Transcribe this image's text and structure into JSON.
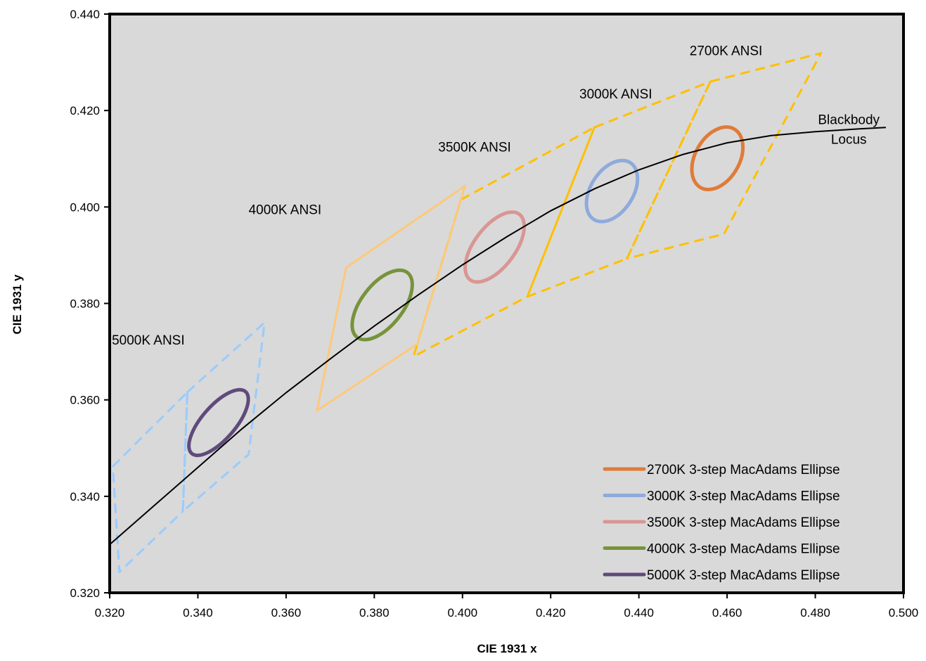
{
  "chart_data": {
    "type": "line",
    "title": "",
    "xlabel": "CIE 1931 x",
    "ylabel": "CIE 1931 y",
    "xlim": [
      0.32,
      0.5
    ],
    "ylim": [
      0.32,
      0.44
    ],
    "xticks": [
      "0.320",
      "0.340",
      "0.360",
      "0.380",
      "0.400",
      "0.420",
      "0.440",
      "0.460",
      "0.480",
      "0.500"
    ],
    "yticks": [
      "0.320",
      "0.340",
      "0.360",
      "0.380",
      "0.400",
      "0.420",
      "0.440"
    ],
    "grid": false,
    "legend_position": "bottom-right",
    "plot_background": "#d9d9d9",
    "blackbody_locus": {
      "label": [
        "Blackbody",
        "Locus"
      ],
      "color": "#000000",
      "x": [
        0.32,
        0.33,
        0.34,
        0.35,
        0.36,
        0.37,
        0.38,
        0.39,
        0.4,
        0.41,
        0.42,
        0.43,
        0.44,
        0.45,
        0.46,
        0.47,
        0.48,
        0.49,
        0.496
      ],
      "y": [
        0.33,
        0.338,
        0.346,
        0.354,
        0.3615,
        0.3685,
        0.3753,
        0.3818,
        0.388,
        0.3938,
        0.3992,
        0.4038,
        0.4077,
        0.4109,
        0.4133,
        0.4148,
        0.4156,
        0.4162,
        0.4165
      ]
    },
    "ansi_quadrangles": [
      {
        "name": "2700K ANSI",
        "label_at": [
          0.4515,
          0.4315
        ],
        "color": "#ffc000",
        "style": "dashed",
        "points": [
          [
            0.4562,
            0.426
          ],
          [
            0.4813,
            0.4319
          ],
          [
            0.4593,
            0.3944
          ],
          [
            0.4373,
            0.3893
          ]
        ]
      },
      {
        "name": "3000K ANSI",
        "label_at": [
          0.4265,
          0.4225
        ],
        "color": "#ffc000",
        "style": "dashed",
        "points": [
          [
            0.4299,
            0.4165
          ],
          [
            0.4562,
            0.426
          ],
          [
            0.4373,
            0.3893
          ],
          [
            0.4147,
            0.3814
          ]
        ]
      },
      {
        "name": "3500K ANSI",
        "label_at": [
          0.3945,
          0.4115
        ],
        "color": "#ffc000",
        "style": "dashed",
        "points": [
          [
            0.3996,
            0.4015
          ],
          [
            0.4299,
            0.4165
          ],
          [
            0.4147,
            0.3814
          ],
          [
            0.3889,
            0.369
          ]
        ]
      },
      {
        "name": "4000K ANSI",
        "label_at": [
          0.3515,
          0.3985
        ],
        "color": "#fcc97a",
        "style": "solid",
        "points": [
          [
            0.3736,
            0.3874
          ],
          [
            0.4006,
            0.4044
          ],
          [
            0.3898,
            0.3716
          ],
          [
            0.367,
            0.3578
          ]
        ]
      },
      {
        "name": "5000K ANSI",
        "label_at": [
          0.3205,
          0.3715
        ],
        "color": "#99ccff",
        "style": "dashed",
        "points": [
          [
            0.3376,
            0.3616
          ],
          [
            0.3551,
            0.376
          ],
          [
            0.3515,
            0.3487
          ],
          [
            0.3366,
            0.3369
          ]
        ]
      },
      {
        "name": "",
        "label_at": null,
        "color": "#99ccff",
        "style": "dashed",
        "points": [
          [
            0.3207,
            0.3462
          ],
          [
            0.3376,
            0.3616
          ],
          [
            0.3366,
            0.3369
          ],
          [
            0.3222,
            0.3243
          ]
        ]
      }
    ],
    "ellipses": [
      {
        "name": "2700K 3-step MacAdams Ellipse",
        "color": "#e07b39",
        "cx": 0.4578,
        "cy": 0.4101,
        "rx": 0.005,
        "ry": 0.007,
        "tilt_deg": 30
      },
      {
        "name": "3000K 3-step MacAdams Ellipse",
        "color": "#8faadc",
        "cx": 0.4339,
        "cy": 0.4033,
        "rx": 0.0048,
        "ry": 0.007,
        "tilt_deg": 33
      },
      {
        "name": "3500K 3-step MacAdams Ellipse",
        "color": "#d99694",
        "cx": 0.4073,
        "cy": 0.3917,
        "rx": 0.0046,
        "ry": 0.0085,
        "tilt_deg": 37
      },
      {
        "name": "4000K 3-step MacAdams Ellipse",
        "color": "#77933c",
        "cx": 0.3818,
        "cy": 0.3797,
        "rx": 0.0047,
        "ry": 0.0085,
        "tilt_deg": 38
      },
      {
        "name": "5000K 3-step MacAdams Ellipse",
        "color": "#604a7b",
        "cx": 0.3447,
        "cy": 0.3553,
        "rx": 0.0038,
        "ry": 0.0085,
        "tilt_deg": 41
      }
    ]
  }
}
